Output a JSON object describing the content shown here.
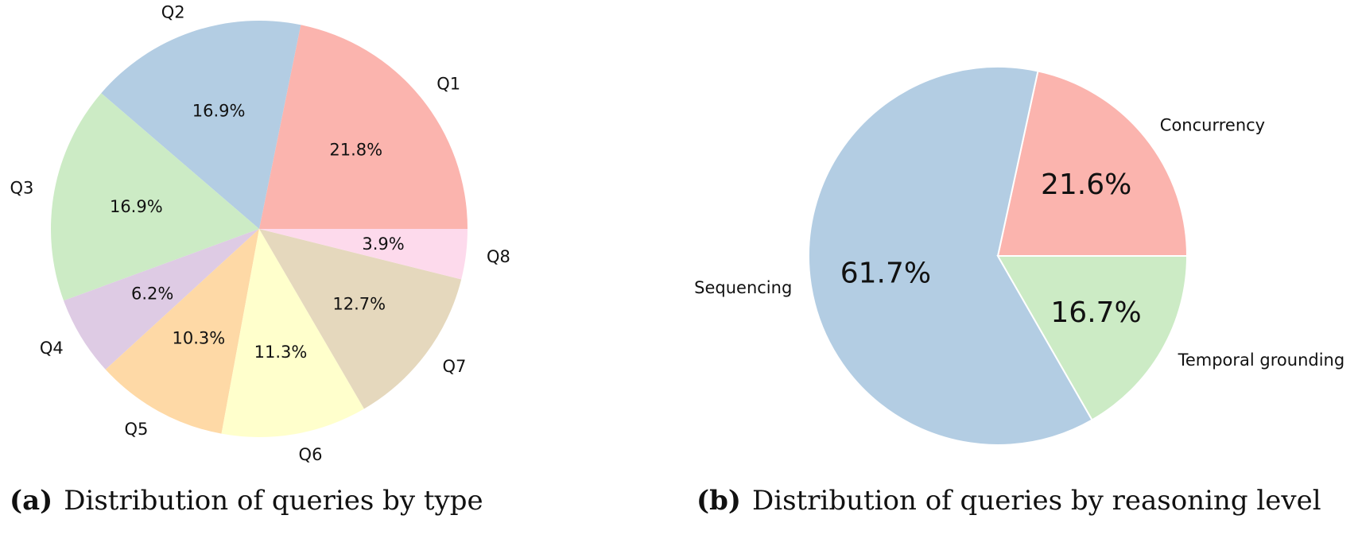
{
  "chart_data": [
    {
      "type": "pie",
      "caption_tag": "(a)",
      "caption": "Distribution of queries by type",
      "labels": [
        "Q1",
        "Q2",
        "Q3",
        "Q4",
        "Q5",
        "Q6",
        "Q7",
        "Q8"
      ],
      "values": [
        21.8,
        16.9,
        16.9,
        6.2,
        10.3,
        11.3,
        12.7,
        3.9
      ],
      "value_labels": [
        "21.8%",
        "16.9%",
        "16.9%",
        "6.2%",
        "10.3%",
        "11.3%",
        "12.7%",
        "3.9%"
      ],
      "colors": [
        "#fbb4ae",
        "#b3cde3",
        "#ccebc5",
        "#decbe4",
        "#fed9a6",
        "#ffffcc",
        "#e5d8bd",
        "#fddaec"
      ],
      "start_angle": 0,
      "direction": "counterclockwise"
    },
    {
      "type": "pie",
      "caption_tag": "(b)",
      "caption": "Distribution of queries by reasoning level",
      "labels": [
        "Concurrency",
        "Sequencing",
        "Temporal grounding"
      ],
      "values": [
        21.6,
        61.7,
        16.7
      ],
      "value_labels": [
        "21.6%",
        "61.7%",
        "16.7%"
      ],
      "colors": [
        "#fbb4ae",
        "#b3cde3",
        "#ccebc5"
      ],
      "start_angle": 0,
      "direction": "counterclockwise"
    }
  ]
}
